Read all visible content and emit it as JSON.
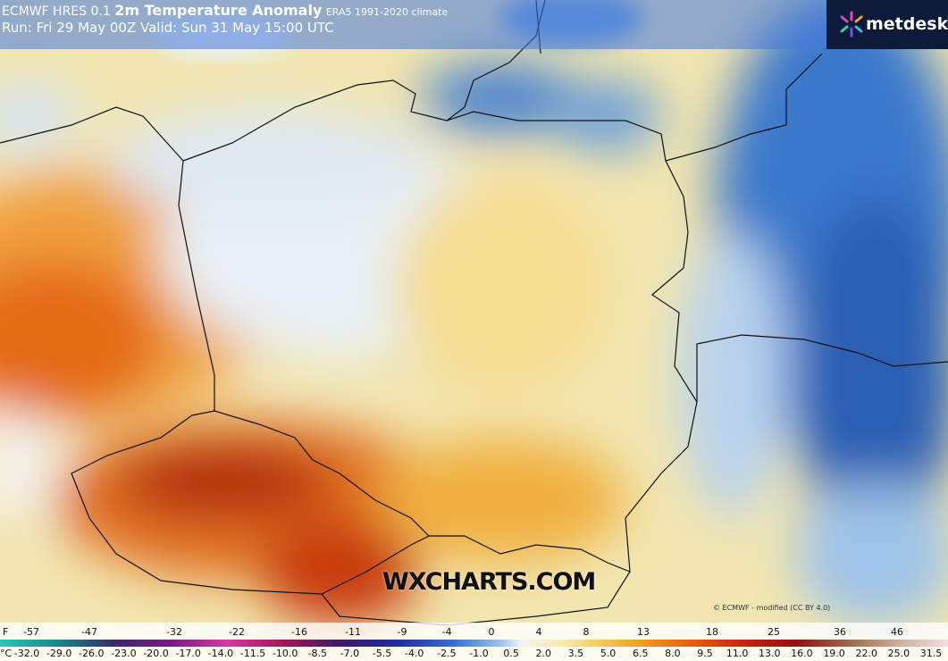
{
  "header": {
    "model": "ECMWF HRES 0.1",
    "title": "2m Temperature Anomaly",
    "climate": "ERA5 1991-2020 climate",
    "run": "Run: Fri 29 May 00Z Valid: Sun 31 May 15:00 UTC"
  },
  "logo": "metdesk",
  "watermark": "WXCHARTS.COM",
  "credit": "© ECMWF - modified (CC BY 4.0)",
  "scale": {
    "f_unit": "F",
    "f_labels": [
      "-57",
      "-47",
      "-32",
      "-22",
      "-16",
      "-11",
      "-9",
      "-4",
      "0",
      "4",
      "8",
      "13",
      "18",
      "25",
      "36",
      "46"
    ],
    "c_unit": "°C",
    "c_labels": [
      "-32.0",
      "-29.0",
      "-26.0",
      "-23.0",
      "-20.0",
      "-17.0",
      "-14.0",
      "-11.5",
      "-10.0",
      "-8.5",
      "-7.0",
      "-5.5",
      "-4.0",
      "-2.5",
      "-1.0",
      "0.5",
      "2.0",
      "3.5",
      "5.0",
      "6.5",
      "8.0",
      "9.5",
      "11.0",
      "13.0",
      "16.0",
      "19.0",
      "22.0",
      "25.0",
      "31.5"
    ]
  }
}
